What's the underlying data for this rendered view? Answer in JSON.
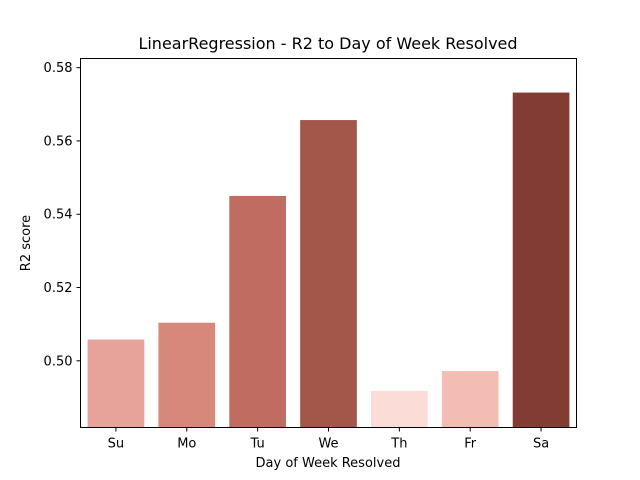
{
  "chart_data": {
    "type": "bar",
    "title": "LinearRegression - R2 to Day of Week Resolved",
    "xlabel": "Day of Week Resolved",
    "ylabel": "R2 score",
    "categories": [
      "Su",
      "Mo",
      "Tu",
      "We",
      "Th",
      "Fr",
      "Sa"
    ],
    "values": [
      0.5058,
      0.5104,
      0.545,
      0.5657,
      0.4918,
      0.4972,
      0.5732
    ],
    "bar_colors": [
      "#e7a299",
      "#d7887b",
      "#c06c60",
      "#a2574a",
      "#fcdcd6",
      "#f4bdb4",
      "#833c33"
    ],
    "ylim": [
      0.4818,
      0.5825
    ],
    "yticks": [
      0.5,
      0.52,
      0.54,
      0.56,
      0.58
    ],
    "ytick_labels": [
      "0.50",
      "0.52",
      "0.54",
      "0.56",
      "0.58"
    ],
    "grid": false,
    "legend": "none"
  }
}
